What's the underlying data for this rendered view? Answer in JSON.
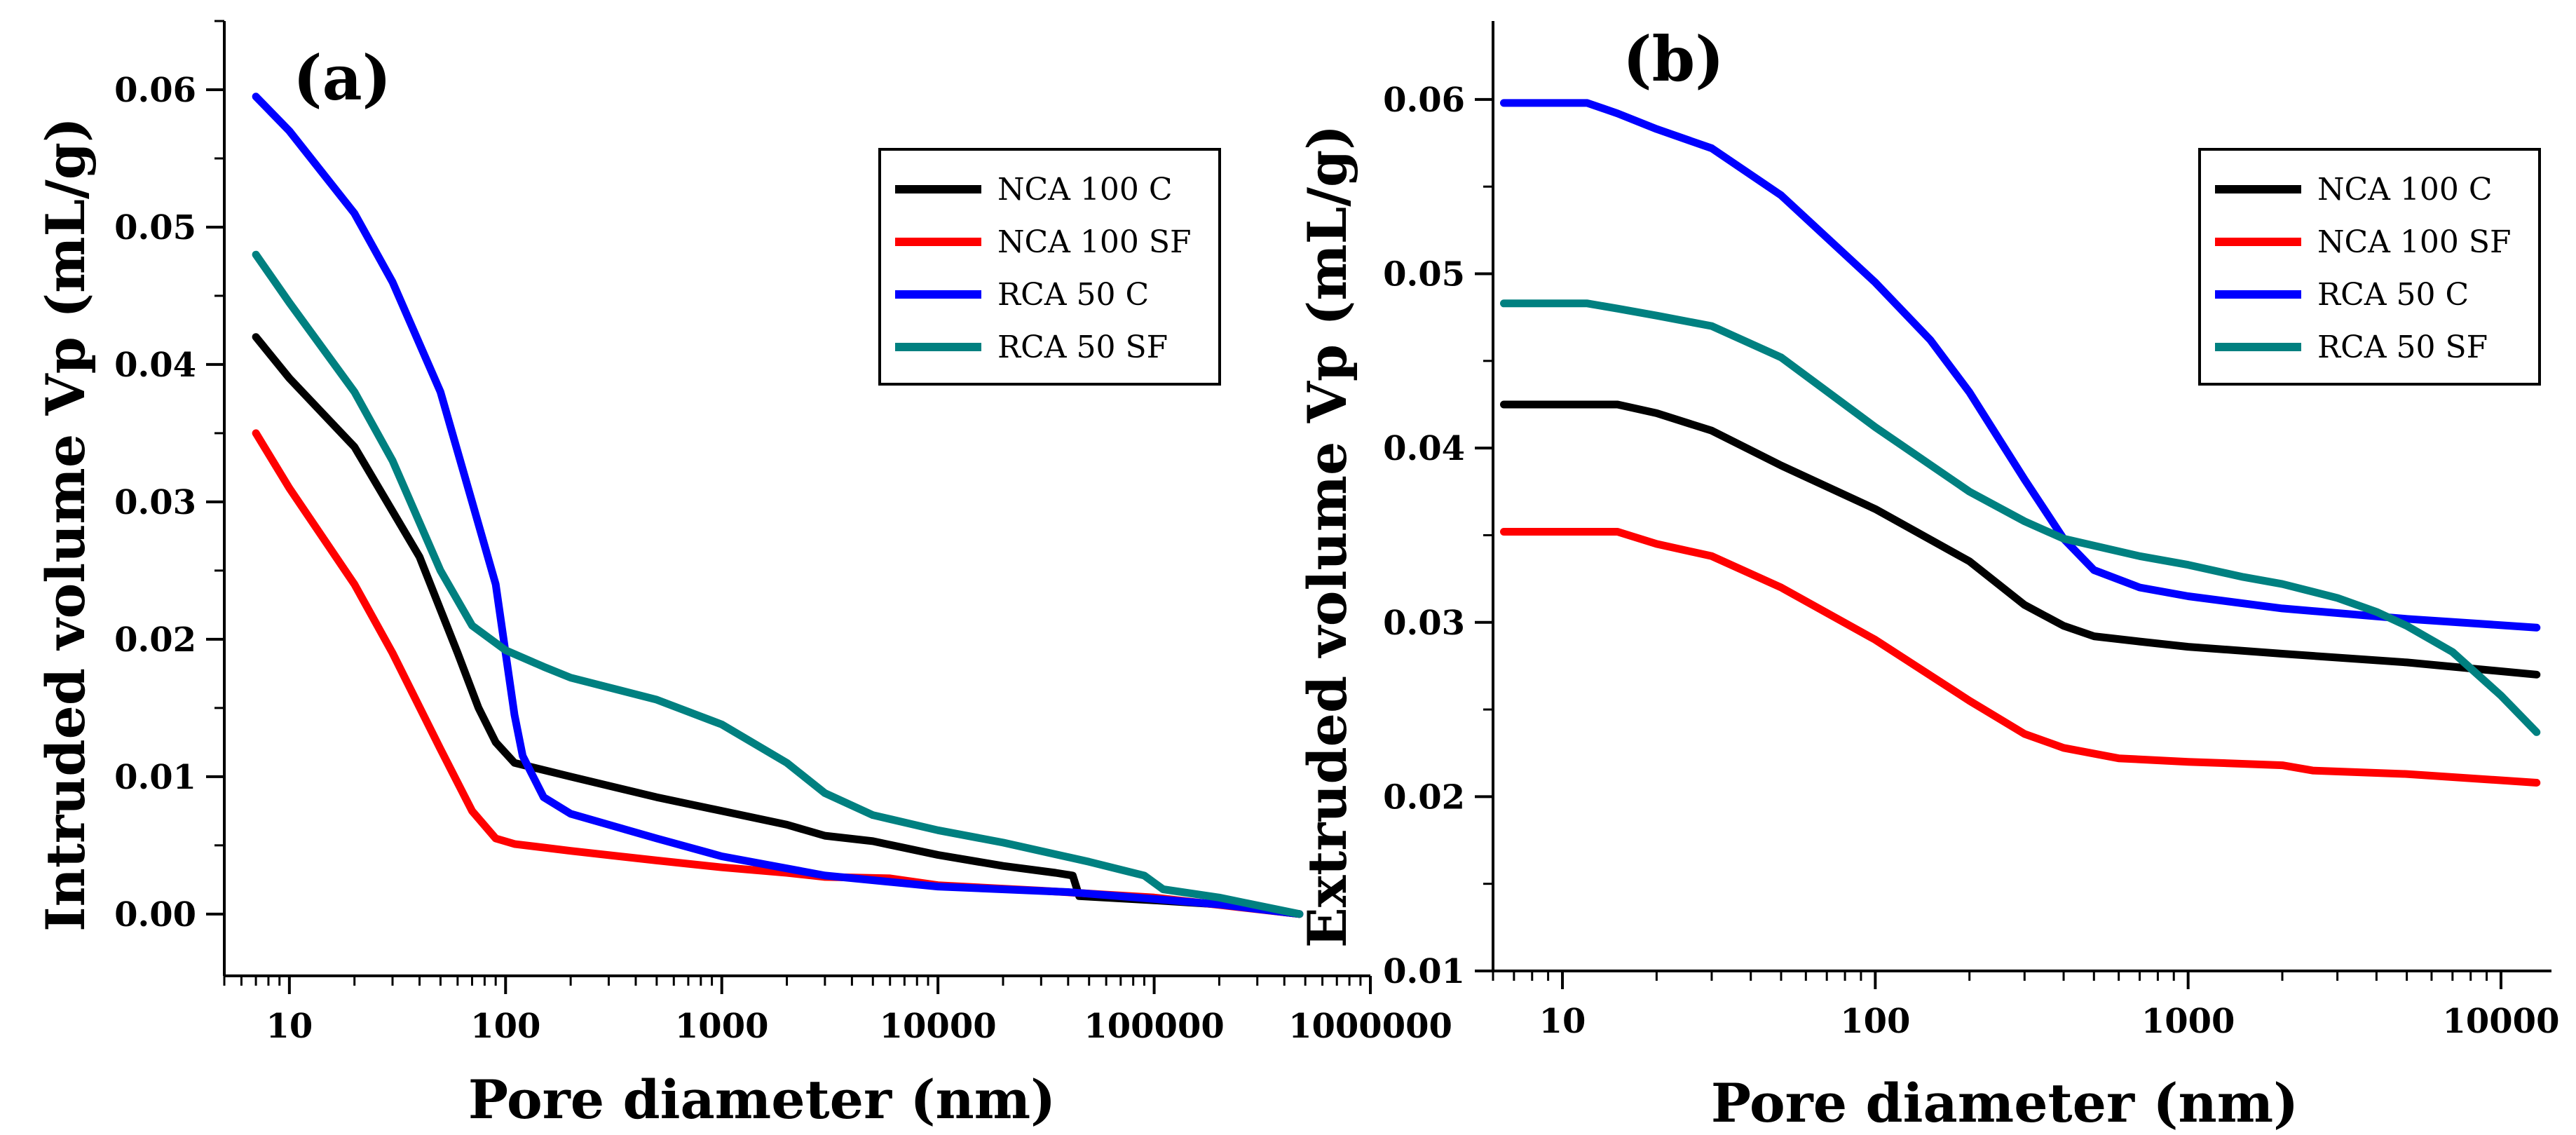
{
  "chart_data": [
    {
      "panel": "(a)",
      "type": "line",
      "x_scale": "log",
      "xlabel": "Pore diameter (nm)",
      "ylabel": "Intruded volume Vp (mL/g)",
      "xlim": [
        5,
        1000000
      ],
      "ylim": [
        -0.0045,
        0.065
      ],
      "x_ticks": [
        10,
        100,
        1000,
        10000,
        100000,
        1000000
      ],
      "x_tick_labels": [
        "10",
        "100",
        "1000",
        "10000",
        "100000",
        "1000000"
      ],
      "y_ticks": [
        0.0,
        0.01,
        0.02,
        0.03,
        0.04,
        0.05,
        0.06
      ],
      "y_tick_labels": [
        "0.00",
        "0.01",
        "0.02",
        "0.03",
        "0.04",
        "0.05",
        "0.06"
      ],
      "legend_position": "top-right",
      "series": [
        {
          "name": "NCA 100 C",
          "color": "#000000",
          "x": [
            7,
            10,
            20,
            40,
            60,
            75,
            90,
            110,
            200,
            500,
            1000,
            2000,
            3000,
            5000,
            10000,
            20000,
            35000,
            42000,
            45000,
            100000,
            200000,
            470000
          ],
          "y": [
            0.042,
            0.039,
            0.034,
            0.026,
            0.019,
            0.015,
            0.0125,
            0.011,
            0.01,
            0.0085,
            0.0075,
            0.0065,
            0.0057,
            0.0053,
            0.0043,
            0.0035,
            0.003,
            0.0028,
            0.0013,
            0.001,
            0.0007,
            0.0
          ]
        },
        {
          "name": "NCA 100 SF",
          "color": "#ff0000",
          "x": [
            7,
            10,
            20,
            30,
            50,
            70,
            90,
            110,
            200,
            500,
            1000,
            2000,
            3000,
            6000,
            10000,
            30000,
            100000,
            470000
          ],
          "y": [
            0.035,
            0.031,
            0.024,
            0.019,
            0.012,
            0.0075,
            0.0055,
            0.0051,
            0.0046,
            0.0039,
            0.0034,
            0.003,
            0.0027,
            0.0026,
            0.0021,
            0.0017,
            0.0012,
            0.0
          ]
        },
        {
          "name": "RCA 50 C",
          "color": "#0000ff",
          "x": [
            7,
            10,
            20,
            30,
            50,
            70,
            90,
            100,
            110,
            120,
            150,
            200,
            300,
            500,
            1000,
            3000,
            10000,
            40000,
            100000,
            200000,
            470000
          ],
          "y": [
            0.0595,
            0.057,
            0.051,
            0.046,
            0.038,
            0.03,
            0.024,
            0.019,
            0.0145,
            0.0115,
            0.0085,
            0.0073,
            0.0065,
            0.0055,
            0.0042,
            0.0028,
            0.002,
            0.0016,
            0.0011,
            0.0007,
            0.0
          ]
        },
        {
          "name": "RCA 50 SF",
          "color": "#008080",
          "x": [
            7,
            10,
            20,
            30,
            50,
            70,
            100,
            150,
            200,
            500,
            1000,
            2000,
            3000,
            5000,
            10000,
            20000,
            50000,
            90000,
            110000,
            200000,
            470000
          ],
          "y": [
            0.048,
            0.0445,
            0.038,
            0.033,
            0.025,
            0.021,
            0.0192,
            0.018,
            0.0172,
            0.0156,
            0.0138,
            0.011,
            0.0088,
            0.0072,
            0.0061,
            0.0052,
            0.0038,
            0.0028,
            0.0018,
            0.0012,
            0.0
          ]
        }
      ]
    },
    {
      "panel": "(b)",
      "type": "line",
      "x_scale": "log",
      "xlabel": "Pore diameter (nm)",
      "ylabel": "Extruded volume Vp (mL/g)",
      "xlim": [
        6,
        14500
      ],
      "ylim": [
        0.01,
        0.0645
      ],
      "x_ticks": [
        10,
        100,
        1000,
        10000
      ],
      "x_tick_labels": [
        "10",
        "100",
        "1000",
        "10000"
      ],
      "y_ticks": [
        0.01,
        0.02,
        0.03,
        0.04,
        0.05,
        0.06
      ],
      "y_tick_labels": [
        "0.01",
        "0.02",
        "0.03",
        "0.04",
        "0.05",
        "0.06"
      ],
      "legend_position": "top-right",
      "series": [
        {
          "name": "NCA 100 C",
          "color": "#000000",
          "x": [
            6.5,
            10,
            15,
            20,
            30,
            50,
            100,
            200,
            300,
            400,
            500,
            700,
            1000,
            2000,
            5000,
            13000
          ],
          "y": [
            0.0425,
            0.0425,
            0.0425,
            0.042,
            0.041,
            0.039,
            0.0365,
            0.0335,
            0.031,
            0.0298,
            0.0292,
            0.0289,
            0.0286,
            0.0282,
            0.0277,
            0.027
          ]
        },
        {
          "name": "NCA 100 SF",
          "color": "#ff0000",
          "x": [
            6.5,
            10,
            15,
            20,
            30,
            50,
            100,
            200,
            300,
            400,
            600,
            1000,
            2000,
            2500,
            5000,
            13000
          ],
          "y": [
            0.0352,
            0.0352,
            0.0352,
            0.0345,
            0.0338,
            0.032,
            0.029,
            0.0255,
            0.0236,
            0.0228,
            0.0222,
            0.022,
            0.0218,
            0.0215,
            0.0213,
            0.0208
          ]
        },
        {
          "name": "RCA 50 C",
          "color": "#0000ff",
          "x": [
            6.5,
            10,
            12,
            15,
            20,
            30,
            50,
            100,
            150,
            200,
            300,
            400,
            500,
            700,
            1000,
            2000,
            5000,
            13000
          ],
          "y": [
            0.0598,
            0.0598,
            0.0598,
            0.0592,
            0.0583,
            0.0572,
            0.0545,
            0.0495,
            0.0462,
            0.0432,
            0.0382,
            0.0348,
            0.033,
            0.032,
            0.0315,
            0.0308,
            0.0302,
            0.0297
          ]
        },
        {
          "name": "RCA 50 SF",
          "color": "#008080",
          "x": [
            6.5,
            12,
            15,
            20,
            30,
            50,
            100,
            200,
            300,
            400,
            700,
            1000,
            1500,
            2000,
            3000,
            4000,
            5000,
            7000,
            10000,
            13000
          ],
          "y": [
            0.0483,
            0.0483,
            0.048,
            0.0476,
            0.047,
            0.0452,
            0.0412,
            0.0375,
            0.0358,
            0.0348,
            0.0338,
            0.0333,
            0.0326,
            0.0322,
            0.0314,
            0.0306,
            0.0298,
            0.0283,
            0.0258,
            0.0237
          ]
        }
      ]
    }
  ]
}
